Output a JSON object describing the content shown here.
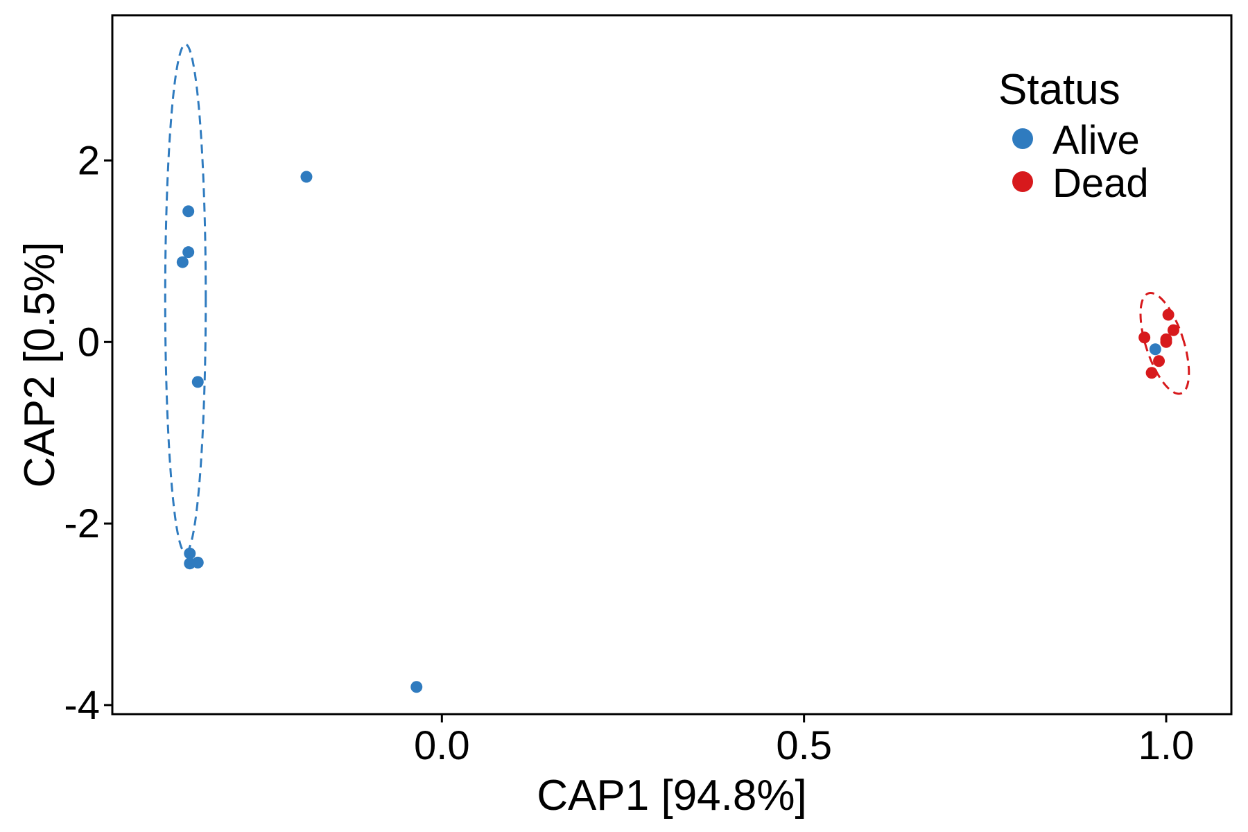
{
  "chart_data": {
    "type": "scatter",
    "title": "",
    "xlabel": "CAP1   [94.8%]",
    "ylabel": "CAP2   [0.5%]",
    "xlim": [
      -0.455,
      1.09
    ],
    "ylim": [
      -4.1,
      3.6
    ],
    "xticks": [
      0.0,
      0.5,
      1.0
    ],
    "xtick_labels": [
      "0.0",
      "0.5",
      "1.0"
    ],
    "yticks": [
      -4,
      -2,
      0,
      2
    ],
    "ytick_labels": [
      "-4",
      "-2",
      "0",
      "2"
    ],
    "grid": false,
    "legend": {
      "title": "Status",
      "position": "top-right"
    },
    "series": [
      {
        "name": "Alive",
        "color": "#2f7bbf",
        "points": [
          {
            "x": -0.187,
            "y": 1.82
          },
          {
            "x": -0.35,
            "y": 1.44
          },
          {
            "x": -0.35,
            "y": 0.99
          },
          {
            "x": -0.358,
            "y": 0.88
          },
          {
            "x": -0.337,
            "y": -0.44
          },
          {
            "x": -0.348,
            "y": -2.33
          },
          {
            "x": -0.348,
            "y": -2.44
          },
          {
            "x": -0.337,
            "y": -2.43
          },
          {
            "x": -0.035,
            "y": -3.8
          },
          {
            "x": 0.985,
            "y": -0.08
          }
        ],
        "ellipse": {
          "cx": -0.354,
          "cy": 0.48,
          "rx": 0.028,
          "ry": 2.8,
          "angle_deg": 0
        }
      },
      {
        "name": "Dead",
        "color": "#d7191c",
        "points": [
          {
            "x": 0.97,
            "y": 0.05
          },
          {
            "x": 1.003,
            "y": 0.3
          },
          {
            "x": 1.01,
            "y": 0.13
          },
          {
            "x": 1.0,
            "y": 0.0
          },
          {
            "x": 1.0,
            "y": 0.03
          },
          {
            "x": 0.99,
            "y": -0.21
          },
          {
            "x": 0.98,
            "y": -0.34
          }
        ],
        "ellipse": {
          "cx": 0.998,
          "cy": -0.015,
          "rx": 0.026,
          "ry": 0.58,
          "angle_deg": -18
        }
      }
    ]
  }
}
